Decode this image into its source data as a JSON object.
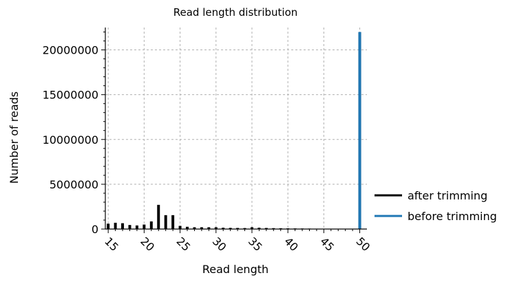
{
  "chart_data": {
    "type": "bar",
    "title": "Read length distribution",
    "xlabel": "Read length",
    "ylabel": "Number of reads",
    "xlim": [
      14.6,
      51.0
    ],
    "ylim": [
      0,
      22500000
    ],
    "xticks": [
      15,
      20,
      25,
      30,
      35,
      40,
      45,
      50
    ],
    "yticks": [
      0,
      5000000,
      10000000,
      15000000,
      20000000
    ],
    "xtick_labels": [
      "15",
      "20",
      "25",
      "30",
      "35",
      "40",
      "45",
      "50"
    ],
    "ytick_labels": [
      "0",
      "5000000",
      "10000000",
      "15000000",
      "20000000"
    ],
    "grid": true,
    "legend_position": "right, outside",
    "series": [
      {
        "name": "after trimming",
        "color": "#000000",
        "x": [
          15,
          16,
          17,
          18,
          19,
          20,
          21,
          22,
          23,
          24,
          25,
          26,
          27,
          28,
          29,
          30,
          31,
          32,
          33,
          34,
          35,
          36,
          37,
          38,
          39,
          40,
          41,
          42,
          43,
          44,
          45,
          46,
          47,
          48,
          49,
          50
        ],
        "values": [
          600000,
          700000,
          650000,
          450000,
          400000,
          500000,
          850000,
          2700000,
          1550000,
          1550000,
          350000,
          250000,
          200000,
          200000,
          200000,
          200000,
          150000,
          130000,
          120000,
          110000,
          200000,
          150000,
          120000,
          100000,
          90000,
          80000,
          70000,
          60000,
          50000,
          40000,
          30000,
          30000,
          20000,
          20000,
          10000,
          22000000
        ]
      },
      {
        "name": "before trimming",
        "color": "#1f77b4",
        "x": [
          50
        ],
        "values": [
          22000000
        ]
      }
    ]
  }
}
